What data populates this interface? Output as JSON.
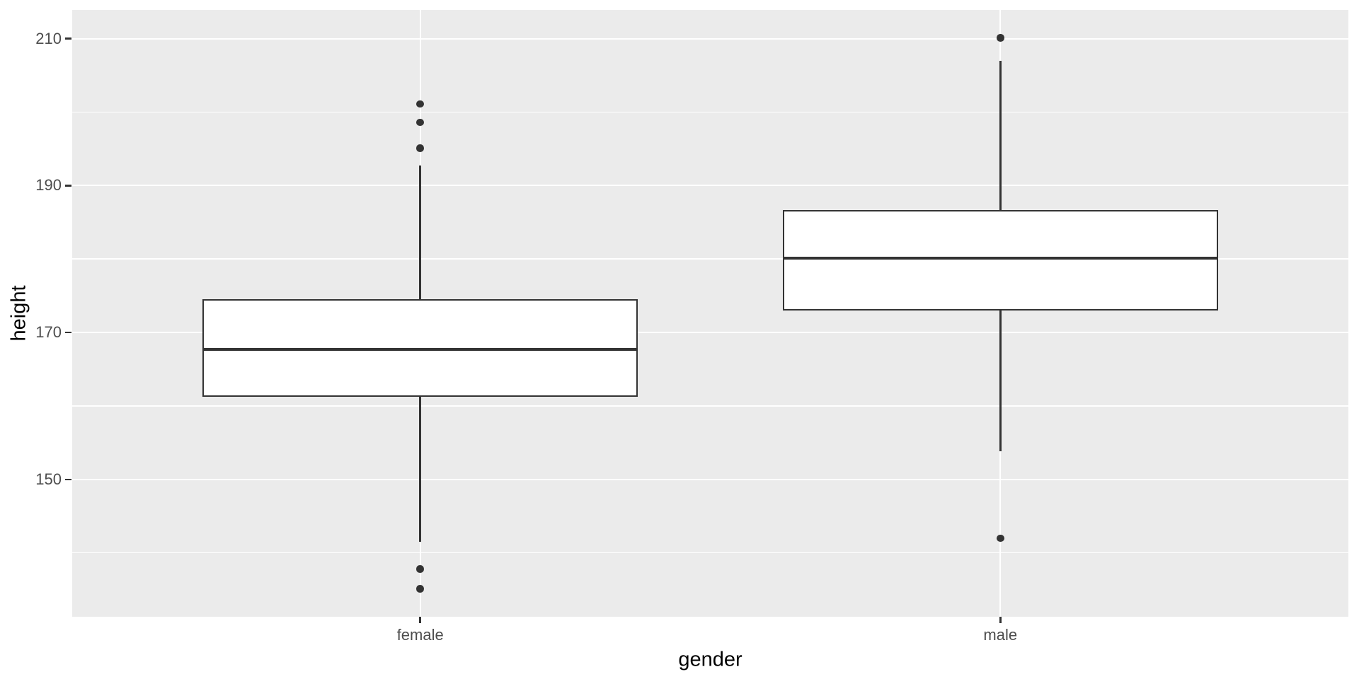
{
  "chart_data": {
    "type": "boxplot",
    "title": "",
    "xlabel": "gender",
    "ylabel": "height",
    "categories": [
      "female",
      "male"
    ],
    "ylim": [
      131.3,
      213.9
    ],
    "y_major_ticks": [
      150,
      170,
      190,
      210
    ],
    "y_minor_gridlines": [
      140,
      160,
      180,
      200
    ],
    "grid": true,
    "legend_position": "none",
    "series": [
      {
        "category": "female",
        "whisker_low": 141.5,
        "q1": 161.2,
        "median": 167.7,
        "q3": 174.5,
        "whisker_high": 192.7,
        "outliers": [
          135.1,
          137.8,
          195.1,
          198.6,
          201.1
        ]
      },
      {
        "category": "male",
        "whisker_low": 153.8,
        "q1": 173.0,
        "median": 180.1,
        "q3": 186.7,
        "whisker_high": 207.0,
        "outliers": [
          142.0,
          210.1
        ]
      }
    ],
    "colors": {
      "figure_background": "#FFFFFF",
      "panel_background": "#EBEBEB",
      "gridline": "#FFFFFF",
      "box_fill": "#FFFFFF",
      "stroke": "#333333",
      "tick_label": "#4D4D4D",
      "axis_title": "#000000"
    }
  }
}
